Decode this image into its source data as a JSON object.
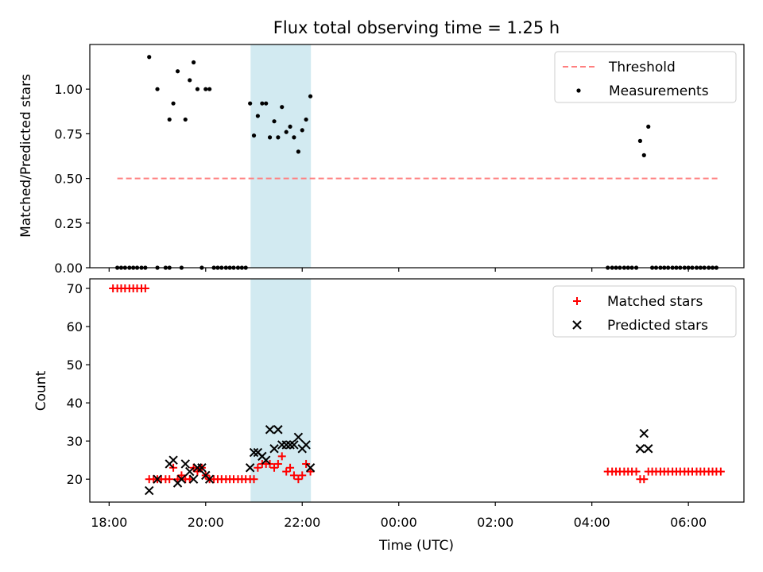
{
  "chart_data": [
    {
      "type": "scatter",
      "title": "Flux total observing time = 1.25 h",
      "xlabel": "",
      "ylabel": "Matched/Predicted stars",
      "xlim": [
        17.6,
        31.15
      ],
      "ylim": [
        0.0,
        1.25
      ],
      "x_unit": "hours since 18:00 UTC on first night",
      "yticks": [
        0.0,
        0.25,
        0.5,
        0.75,
        1.0
      ],
      "ytick_labels": [
        "0.00",
        "0.25",
        "0.50",
        "0.75",
        "1.00"
      ],
      "shaded_interval": [
        20.93,
        22.18
      ],
      "shade_color": "#add8e6",
      "legend": {
        "position": "top-right",
        "entries": [
          "Threshold",
          "Measurements"
        ]
      },
      "series": [
        {
          "name": "Threshold",
          "style": "dashed-line",
          "color": "#ff7f7f",
          "x": [
            18.17,
            30.63
          ],
          "y": [
            0.5,
            0.5
          ]
        },
        {
          "name": "Measurements",
          "style": "dot",
          "color": "#000000",
          "points": [
            [
              18.17,
              0
            ],
            [
              18.25,
              0
            ],
            [
              18.33,
              0
            ],
            [
              18.42,
              0
            ],
            [
              18.5,
              0
            ],
            [
              18.58,
              0
            ],
            [
              18.67,
              0
            ],
            [
              18.75,
              0
            ],
            [
              18.83,
              1.18
            ],
            [
              19.0,
              0
            ],
            [
              19.0,
              1.0
            ],
            [
              19.17,
              0
            ],
            [
              19.25,
              0
            ],
            [
              19.25,
              0.83
            ],
            [
              19.33,
              0.92
            ],
            [
              19.42,
              1.1
            ],
            [
              19.5,
              0
            ],
            [
              19.58,
              0.83
            ],
            [
              19.67,
              1.05
            ],
            [
              19.75,
              1.15
            ],
            [
              19.83,
              1.0
            ],
            [
              19.92,
              0
            ],
            [
              20.0,
              1.0
            ],
            [
              20.08,
              1.0
            ],
            [
              20.17,
              0
            ],
            [
              20.25,
              0
            ],
            [
              20.33,
              0
            ],
            [
              20.42,
              0
            ],
            [
              20.5,
              0
            ],
            [
              20.58,
              0
            ],
            [
              20.67,
              0
            ],
            [
              20.75,
              0
            ],
            [
              20.83,
              0
            ],
            [
              20.92,
              0.92
            ],
            [
              21.0,
              0.74
            ],
            [
              21.08,
              0.85
            ],
            [
              21.17,
              0.92
            ],
            [
              21.25,
              0.92
            ],
            [
              21.33,
              0.73
            ],
            [
              21.42,
              0.82
            ],
            [
              21.5,
              0.73
            ],
            [
              21.58,
              0.9
            ],
            [
              21.67,
              0.76
            ],
            [
              21.75,
              0.79
            ],
            [
              21.83,
              0.73
            ],
            [
              21.92,
              0.65
            ],
            [
              22.0,
              0.77
            ],
            [
              22.08,
              0.83
            ],
            [
              22.17,
              0.96
            ],
            [
              28.33,
              0
            ],
            [
              28.42,
              0
            ],
            [
              28.5,
              0
            ],
            [
              28.58,
              0
            ],
            [
              28.67,
              0
            ],
            [
              28.75,
              0
            ],
            [
              28.83,
              0
            ],
            [
              28.92,
              0
            ],
            [
              29.0,
              0.71
            ],
            [
              29.08,
              0.63
            ],
            [
              29.17,
              0.79
            ],
            [
              29.25,
              0
            ],
            [
              29.33,
              0
            ],
            [
              29.42,
              0
            ],
            [
              29.5,
              0
            ],
            [
              29.58,
              0
            ],
            [
              29.67,
              0
            ],
            [
              29.75,
              0
            ],
            [
              29.83,
              0
            ],
            [
              29.92,
              0
            ],
            [
              30.0,
              0
            ],
            [
              30.08,
              0
            ],
            [
              30.17,
              0
            ],
            [
              30.25,
              0
            ],
            [
              30.33,
              0
            ],
            [
              30.42,
              0
            ],
            [
              30.5,
              0
            ],
            [
              30.58,
              0
            ]
          ]
        }
      ]
    },
    {
      "type": "scatter",
      "title": "",
      "xlabel": "Time (UTC)",
      "ylabel": "Count",
      "xlim": [
        17.6,
        31.15
      ],
      "ylim": [
        14.0,
        72.5
      ],
      "x_unit": "hours since 18:00 UTC on first night",
      "yticks": [
        20,
        30,
        40,
        50,
        60,
        70
      ],
      "ytick_labels": [
        "20",
        "30",
        "40",
        "50",
        "60",
        "70"
      ],
      "xticks": [
        18,
        20,
        22,
        24,
        26,
        28,
        30
      ],
      "xtick_labels": [
        "18:00",
        "20:00",
        "22:00",
        "00:00",
        "02:00",
        "04:00",
        "06:00"
      ],
      "shaded_interval": [
        20.93,
        22.18
      ],
      "shade_color": "#add8e6",
      "legend": {
        "position": "top-right",
        "entries": [
          "Matched stars",
          "Predicted stars"
        ]
      },
      "series": [
        {
          "name": "Matched stars",
          "marker": "plus",
          "color": "#ff0000",
          "points": [
            [
              18.08,
              70
            ],
            [
              18.17,
              70
            ],
            [
              18.25,
              70
            ],
            [
              18.33,
              70
            ],
            [
              18.42,
              70
            ],
            [
              18.5,
              70
            ],
            [
              18.58,
              70
            ],
            [
              18.67,
              70
            ],
            [
              18.75,
              70
            ],
            [
              18.83,
              20
            ],
            [
              18.92,
              20
            ],
            [
              19.0,
              20
            ],
            [
              19.08,
              20
            ],
            [
              19.17,
              20
            ],
            [
              19.25,
              20
            ],
            [
              19.33,
              23
            ],
            [
              19.42,
              20
            ],
            [
              19.5,
              21
            ],
            [
              19.58,
              20
            ],
            [
              19.67,
              20
            ],
            [
              19.75,
              23
            ],
            [
              19.83,
              22
            ],
            [
              19.92,
              23
            ],
            [
              20.0,
              21
            ],
            [
              20.08,
              20
            ],
            [
              20.17,
              20
            ],
            [
              20.25,
              20
            ],
            [
              20.33,
              20
            ],
            [
              20.42,
              20
            ],
            [
              20.5,
              20
            ],
            [
              20.58,
              20
            ],
            [
              20.67,
              20
            ],
            [
              20.75,
              20
            ],
            [
              20.83,
              20
            ],
            [
              20.92,
              20
            ],
            [
              21.0,
              20
            ],
            [
              21.08,
              23
            ],
            [
              21.17,
              24
            ],
            [
              21.25,
              24
            ],
            [
              21.33,
              24
            ],
            [
              21.42,
              23
            ],
            [
              21.5,
              24
            ],
            [
              21.58,
              26
            ],
            [
              21.67,
              22
            ],
            [
              21.75,
              23
            ],
            [
              21.83,
              21
            ],
            [
              21.92,
              20
            ],
            [
              22.0,
              21
            ],
            [
              22.08,
              24
            ],
            [
              22.17,
              22
            ],
            [
              28.33,
              22
            ],
            [
              28.42,
              22
            ],
            [
              28.5,
              22
            ],
            [
              28.58,
              22
            ],
            [
              28.67,
              22
            ],
            [
              28.75,
              22
            ],
            [
              28.83,
              22
            ],
            [
              28.92,
              22
            ],
            [
              29.0,
              20
            ],
            [
              29.08,
              20
            ],
            [
              29.17,
              22
            ],
            [
              29.25,
              22
            ],
            [
              29.33,
              22
            ],
            [
              29.42,
              22
            ],
            [
              29.5,
              22
            ],
            [
              29.58,
              22
            ],
            [
              29.67,
              22
            ],
            [
              29.75,
              22
            ],
            [
              29.83,
              22
            ],
            [
              29.92,
              22
            ],
            [
              30.0,
              22
            ],
            [
              30.08,
              22
            ],
            [
              30.17,
              22
            ],
            [
              30.25,
              22
            ],
            [
              30.33,
              22
            ],
            [
              30.42,
              22
            ],
            [
              30.5,
              22
            ],
            [
              30.58,
              22
            ],
            [
              30.67,
              22
            ]
          ]
        },
        {
          "name": "Predicted stars",
          "marker": "x",
          "color": "#000000",
          "points": [
            [
              18.83,
              17
            ],
            [
              19.0,
              20
            ],
            [
              19.25,
              24
            ],
            [
              19.33,
              25
            ],
            [
              19.42,
              19
            ],
            [
              19.5,
              20
            ],
            [
              19.58,
              24
            ],
            [
              19.67,
              22
            ],
            [
              19.75,
              20
            ],
            [
              19.83,
              23
            ],
            [
              19.92,
              23
            ],
            [
              20.0,
              21
            ],
            [
              20.08,
              20
            ],
            [
              20.92,
              23
            ],
            [
              21.0,
              27
            ],
            [
              21.08,
              27
            ],
            [
              21.17,
              26
            ],
            [
              21.25,
              25
            ],
            [
              21.33,
              33
            ],
            [
              21.42,
              28
            ],
            [
              21.5,
              33
            ],
            [
              21.58,
              29
            ],
            [
              21.67,
              29
            ],
            [
              21.75,
              29
            ],
            [
              21.83,
              29
            ],
            [
              21.92,
              31
            ],
            [
              22.0,
              28
            ],
            [
              22.08,
              29
            ],
            [
              22.17,
              23
            ],
            [
              29.0,
              28
            ],
            [
              29.08,
              32
            ],
            [
              29.17,
              28
            ]
          ]
        }
      ]
    }
  ]
}
